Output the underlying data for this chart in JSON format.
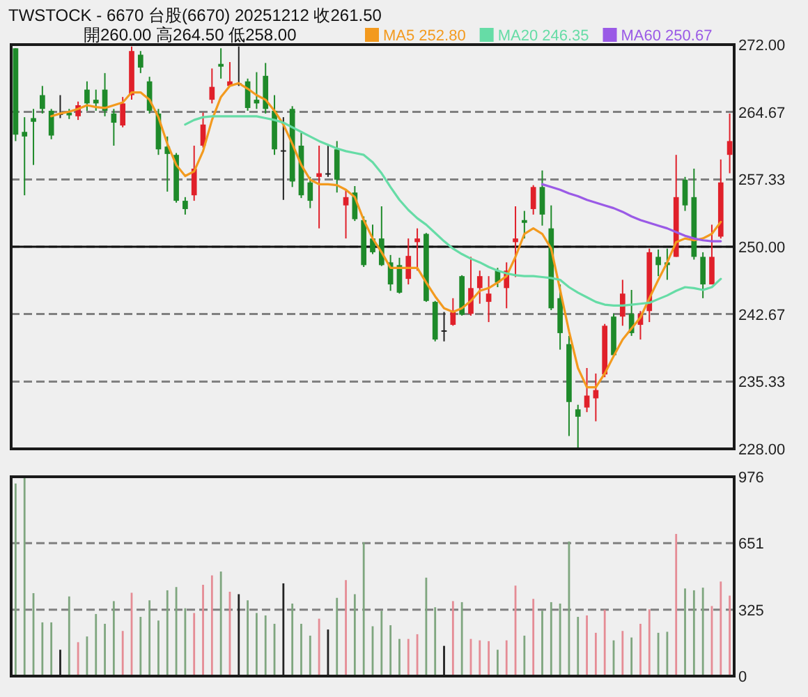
{
  "chart_data": [
    {
      "type": "candlestick",
      "title": "TWSTOCK - 6670  台股(6670) 20251212  收261.50",
      "subtitle": "開260.00   高264.50   低258.00",
      "categories": [
        null,
        null,
        null,
        null,
        null,
        null,
        null,
        null,
        null,
        null,
        null,
        null,
        null,
        null,
        null,
        null,
        null,
        null,
        null,
        null,
        null,
        null,
        null,
        null,
        null,
        null,
        null,
        null,
        null,
        null,
        null,
        null,
        null,
        null,
        null,
        null,
        null,
        null,
        null,
        null,
        null,
        null,
        null,
        null,
        null,
        null,
        null,
        null,
        null,
        null,
        null,
        null,
        null,
        null,
        null,
        null,
        null,
        null,
        null,
        null,
        null,
        null,
        null,
        null,
        null,
        null,
        null,
        null,
        null,
        null,
        null,
        null,
        null,
        null,
        null,
        null,
        null,
        null,
        null,
        null,
        null
      ],
      "ohlc": [
        [
          271.6,
          271.6,
          261.5,
          262.2
        ],
        [
          262.5,
          264.1,
          255.6,
          262.0
        ],
        [
          264.0,
          265.0,
          258.9,
          263.6
        ],
        [
          266.5,
          267.5,
          264.5,
          265.0
        ],
        [
          264.8,
          265.0,
          261.7,
          262.1
        ],
        [
          264.5,
          266.5,
          264.0,
          264.5
        ],
        [
          264.6,
          265.0,
          263.9,
          264.3
        ],
        [
          264.2,
          265.8,
          263.8,
          265.4
        ],
        [
          267.1,
          268.0,
          264.8,
          265.6
        ],
        [
          266.0,
          267.1,
          264.8,
          265.6
        ],
        [
          267.1,
          268.9,
          264.2,
          264.8
        ],
        [
          264.5,
          265.0,
          261.0,
          263.5
        ],
        [
          263.2,
          266.3,
          263.0,
          265.6
        ],
        [
          266.5,
          271.8,
          266.0,
          271.3
        ],
        [
          270.9,
          271.3,
          268.9,
          269.5
        ],
        [
          268.0,
          268.5,
          264.5,
          264.8
        ],
        [
          264.5,
          265.0,
          260.0,
          260.6
        ],
        [
          260.9,
          262.0,
          256.0,
          260.1
        ],
        [
          260.0,
          260.2,
          254.8,
          255.0
        ],
        [
          255.0,
          255.4,
          253.5,
          254.1
        ],
        [
          255.6,
          261.0,
          255.0,
          258.5
        ],
        [
          261.0,
          264.6,
          260.8,
          263.3
        ],
        [
          266.0,
          269.4,
          265.6,
          267.4
        ],
        [
          269.9,
          271.6,
          268.3,
          269.6
        ],
        [
          267.5,
          270.1,
          267.5,
          268.0
        ],
        [
          267.8,
          271.8,
          267.5,
          267.8
        ],
        [
          268.0,
          268.3,
          264.8,
          265.1
        ],
        [
          266.0,
          269.0,
          265.0,
          265.6
        ],
        [
          268.6,
          270.0,
          264.5,
          265.0
        ],
        [
          264.8,
          266.5,
          260.0,
          260.6
        ],
        [
          260.5,
          264.1,
          255.1,
          260.5
        ],
        [
          265.0,
          265.3,
          256.5,
          257.1
        ],
        [
          261.0,
          262.4,
          255.3,
          255.6
        ],
        [
          257.0,
          257.6,
          254.2,
          255.0
        ],
        [
          257.6,
          261.0,
          252.0,
          258.0
        ],
        [
          258.0,
          261.0,
          257.6,
          258.0
        ],
        [
          260.6,
          261.5,
          255.9,
          257.3
        ],
        [
          254.5,
          256.2,
          250.9,
          255.4
        ],
        [
          255.9,
          256.6,
          252.8,
          253.0
        ],
        [
          252.9,
          253.3,
          247.8,
          248.0
        ],
        [
          250.9,
          252.4,
          249.2,
          249.4
        ],
        [
          250.9,
          254.4,
          247.9,
          248.0
        ],
        [
          248.3,
          249.1,
          245.2,
          245.9
        ],
        [
          248.0,
          248.8,
          244.9,
          245.0
        ],
        [
          246.5,
          250.9,
          245.9,
          249.0
        ],
        [
          250.5,
          252.0,
          247.4,
          250.9
        ],
        [
          251.4,
          251.5,
          244.0,
          244.1
        ],
        [
          244.0,
          244.1,
          239.7,
          239.9
        ],
        [
          240.9,
          242.9,
          239.7,
          240.9
        ],
        [
          241.5,
          244.4,
          241.4,
          242.9
        ],
        [
          246.8,
          246.9,
          242.5,
          242.6
        ],
        [
          242.7,
          248.9,
          242.5,
          245.5
        ],
        [
          245.5,
          247.4,
          243.8,
          246.8
        ],
        [
          244.0,
          246.8,
          241.8,
          244.9
        ],
        [
          247.4,
          247.7,
          245.6,
          246.1
        ],
        [
          245.5,
          248.3,
          243.3,
          247.4
        ],
        [
          250.5,
          254.4,
          246.7,
          250.9
        ],
        [
          252.9,
          253.9,
          250.9,
          252.6
        ],
        [
          254.1,
          256.7,
          253.5,
          256.5
        ],
        [
          256.5,
          258.3,
          252.3,
          253.5
        ],
        [
          252.0,
          254.5,
          243.1,
          243.3
        ],
        [
          244.4,
          245.9,
          238.8,
          240.6
        ],
        [
          239.4,
          240.3,
          229.4,
          233.1
        ],
        [
          232.3,
          232.8,
          228.0,
          231.5
        ],
        [
          232.5,
          236.8,
          232.0,
          233.8
        ],
        [
          233.5,
          236.2,
          231.0,
          234.4
        ],
        [
          236.1,
          241.6,
          235.8,
          241.4
        ],
        [
          242.4,
          242.7,
          238.0,
          238.2
        ],
        [
          242.4,
          246.4,
          241.4,
          244.9
        ],
        [
          242.7,
          245.3,
          240.3,
          240.6
        ],
        [
          241.5,
          243.0,
          239.9,
          242.7
        ],
        [
          243.0,
          249.8,
          241.8,
          249.4
        ],
        [
          248.9,
          249.7,
          246.8,
          248.0
        ],
        [
          248.3,
          249.8,
          246.4,
          248.0
        ],
        [
          248.9,
          260.0,
          248.9,
          255.4
        ],
        [
          257.3,
          257.6,
          253.9,
          254.5
        ],
        [
          255.4,
          258.5,
          248.6,
          248.9
        ],
        [
          248.9,
          249.4,
          244.4,
          245.9
        ],
        [
          245.9,
          252.4,
          245.9,
          248.9
        ],
        [
          251.1,
          259.5,
          250.9,
          257.0
        ],
        [
          260.0,
          264.5,
          258.0,
          261.5
        ]
      ],
      "colors": [
        "#1e8a2a",
        "#1e8a2a",
        "#1e8a2a",
        "#1e8a2a",
        "#1e8a2a",
        "#222222",
        "#1e8a2a",
        "#e0202a",
        "#1e8a2a",
        "#1e8a2a",
        "#1e8a2a",
        "#1e8a2a",
        "#e0202a",
        "#e0202a",
        "#1e8a2a",
        "#1e8a2a",
        "#1e8a2a",
        "#1e8a2a",
        "#1e8a2a",
        "#1e8a2a",
        "#e0202a",
        "#e0202a",
        "#e0202a",
        "#1e8a2a",
        "#e0202a",
        "#222222",
        "#1e8a2a",
        "#1e8a2a",
        "#1e8a2a",
        "#1e8a2a",
        "#222222",
        "#1e8a2a",
        "#1e8a2a",
        "#1e8a2a",
        "#e0202a",
        "#222222",
        "#1e8a2a",
        "#e0202a",
        "#1e8a2a",
        "#1e8a2a",
        "#1e8a2a",
        "#1e8a2a",
        "#1e8a2a",
        "#1e8a2a",
        "#e0202a",
        "#e0202a",
        "#1e8a2a",
        "#1e8a2a",
        "#222222",
        "#e0202a",
        "#1e8a2a",
        "#e0202a",
        "#e0202a",
        "#e0202a",
        "#1e8a2a",
        "#e0202a",
        "#e0202a",
        "#1e8a2a",
        "#e0202a",
        "#1e8a2a",
        "#1e8a2a",
        "#1e8a2a",
        "#1e8a2a",
        "#1e8a2a",
        "#e0202a",
        "#e0202a",
        "#e0202a",
        "#1e8a2a",
        "#e0202a",
        "#1e8a2a",
        "#e0202a",
        "#e0202a",
        "#1e8a2a",
        "#1e8a2a",
        "#e0202a",
        "#1e8a2a",
        "#1e8a2a",
        "#1e8a2a",
        "#e0202a",
        "#e0202a",
        "#e0202a"
      ],
      "series": [
        {
          "name": "MA5 252.80",
          "type": "line",
          "color": "#f39a1e",
          "values": [
            null,
            null,
            null,
            null,
            264.2,
            264.5,
            264.7,
            265.0,
            265.4,
            265.2,
            265.1,
            265.4,
            265.7,
            266.8,
            266.8,
            266.0,
            264.1,
            261.2,
            258.9,
            257.7,
            258.2,
            260.4,
            263.8,
            266.3,
            267.5,
            267.8,
            267.2,
            266.5,
            266.0,
            264.8,
            263.3,
            261.2,
            258.9,
            257.3,
            256.8,
            256.8,
            256.7,
            256.2,
            255.4,
            252.9,
            250.9,
            249.4,
            247.7,
            247.7,
            247.7,
            247.7,
            246.1,
            244.6,
            243.3,
            242.9,
            243.3,
            244.1,
            245.2,
            245.5,
            246.1,
            246.8,
            248.9,
            251.4,
            252.0,
            251.4,
            249.8,
            245.3,
            240.8,
            236.8,
            234.7,
            234.7,
            236.2,
            238.1,
            239.9,
            241.1,
            242.3,
            244.4,
            246.4,
            248.3,
            250.5,
            250.9,
            250.7,
            250.9,
            251.4,
            252.7,
            null
          ]
        },
        {
          "name": "MA20 246.35",
          "type": "line",
          "color": "#66dca6",
          "values": [
            null,
            null,
            null,
            null,
            null,
            null,
            null,
            null,
            null,
            null,
            null,
            null,
            null,
            null,
            null,
            null,
            null,
            null,
            null,
            263.3,
            263.8,
            264.1,
            264.2,
            264.2,
            264.2,
            264.2,
            264.2,
            264.2,
            264.0,
            263.8,
            263.5,
            263.0,
            262.5,
            262.0,
            261.5,
            261.1,
            260.7,
            260.4,
            260.2,
            260.0,
            259.2,
            258.0,
            256.5,
            255.1,
            254.0,
            253.1,
            252.4,
            251.5,
            250.6,
            249.8,
            249.2,
            248.7,
            248.3,
            247.8,
            247.4,
            247.1,
            246.9,
            246.8,
            246.8,
            246.7,
            246.6,
            246.4,
            245.6,
            245.0,
            244.5,
            244.0,
            243.7,
            243.6,
            243.6,
            243.7,
            243.8,
            243.9,
            244.3,
            244.7,
            245.2,
            245.6,
            245.5,
            245.3,
            245.6,
            246.5,
            null
          ]
        },
        {
          "name": "MA60 250.67",
          "type": "line",
          "color": "#9a5ae6",
          "values": [
            null,
            null,
            null,
            null,
            null,
            null,
            null,
            null,
            null,
            null,
            null,
            null,
            null,
            null,
            null,
            null,
            null,
            null,
            null,
            null,
            null,
            null,
            null,
            null,
            null,
            null,
            null,
            null,
            null,
            null,
            null,
            null,
            null,
            null,
            null,
            null,
            null,
            null,
            null,
            null,
            null,
            null,
            null,
            null,
            null,
            null,
            null,
            null,
            null,
            null,
            null,
            null,
            null,
            null,
            null,
            null,
            null,
            null,
            null,
            256.8,
            256.5,
            256.2,
            255.8,
            255.5,
            255.1,
            254.8,
            254.5,
            254.2,
            253.8,
            253.3,
            252.9,
            252.6,
            252.3,
            252.0,
            251.6,
            251.2,
            250.9,
            250.7,
            250.6,
            250.6,
            null
          ]
        }
      ],
      "ylim": [
        228,
        272
      ],
      "yticks": [
        {
          "value": 228,
          "label": "228.00"
        },
        {
          "value": 235.33,
          "label": "235.33"
        },
        {
          "value": 242.67,
          "label": "242.67"
        },
        {
          "value": 250,
          "label": "250.00"
        },
        {
          "value": 257.33,
          "label": "257.33"
        },
        {
          "value": 264.67,
          "label": "264.67"
        },
        {
          "value": 272,
          "label": "272.00"
        }
      ],
      "grid": "y",
      "ref_lines": [
        {
          "axis": "y",
          "value": 250,
          "color": "#111111"
        }
      ],
      "legend": "top"
    },
    {
      "type": "bar",
      "categories": [
        null,
        null,
        null,
        null,
        null,
        null,
        null,
        null,
        null,
        null,
        null,
        null,
        null,
        null,
        null,
        null,
        null,
        null,
        null,
        null,
        null,
        null,
        null,
        null,
        null,
        null,
        null,
        null,
        null,
        null,
        null,
        null,
        null,
        null,
        null,
        null,
        null,
        null,
        null,
        null,
        null,
        null,
        null,
        null,
        null,
        null,
        null,
        null,
        null,
        null,
        null,
        null,
        null,
        null,
        null,
        null,
        null,
        null,
        null,
        null,
        null,
        null,
        null,
        null,
        null,
        null,
        null,
        null,
        null,
        null,
        null,
        null,
        null,
        null,
        null,
        null,
        null,
        null,
        null,
        null,
        null
      ],
      "values": [
        943,
        976,
        406,
        263,
        263,
        129,
        390,
        166,
        194,
        304,
        256,
        367,
        221,
        408,
        290,
        371,
        272,
        420,
        436,
        332,
        309,
        447,
        493,
        512,
        413,
        401,
        371,
        309,
        297,
        256,
        454,
        355,
        256,
        198,
        281,
        228,
        383,
        470,
        401,
        655,
        244,
        320,
        249,
        182,
        182,
        205,
        482,
        337,
        148,
        367,
        362,
        182,
        175,
        171,
        129,
        175,
        443,
        198,
        378,
        320,
        362,
        355,
        659,
        290,
        297,
        212,
        325,
        175,
        221,
        189,
        256,
        327,
        212,
        217,
        696,
        429,
        420,
        433,
        343,
        463,
        394
      ],
      "colors": [
        "#7fa67f",
        "#7fa67f",
        "#7fa67f",
        "#7fa67f",
        "#7fa67f",
        "#222222",
        "#7fa67f",
        "#e58c95",
        "#7fa67f",
        "#7fa67f",
        "#7fa67f",
        "#7fa67f",
        "#e58c95",
        "#e58c95",
        "#7fa67f",
        "#7fa67f",
        "#7fa67f",
        "#7fa67f",
        "#7fa67f",
        "#7fa67f",
        "#e58c95",
        "#e58c95",
        "#e58c95",
        "#7fa67f",
        "#e58c95",
        "#222222",
        "#7fa67f",
        "#7fa67f",
        "#7fa67f",
        "#7fa67f",
        "#222222",
        "#7fa67f",
        "#7fa67f",
        "#7fa67f",
        "#e58c95",
        "#222222",
        "#7fa67f",
        "#e58c95",
        "#7fa67f",
        "#7fa67f",
        "#7fa67f",
        "#7fa67f",
        "#7fa67f",
        "#7fa67f",
        "#e58c95",
        "#e58c95",
        "#7fa67f",
        "#7fa67f",
        "#222222",
        "#e58c95",
        "#7fa67f",
        "#e58c95",
        "#e58c95",
        "#e58c95",
        "#7fa67f",
        "#e58c95",
        "#e58c95",
        "#7fa67f",
        "#e58c95",
        "#7fa67f",
        "#7fa67f",
        "#7fa67f",
        "#7fa67f",
        "#7fa67f",
        "#e58c95",
        "#e58c95",
        "#e58c95",
        "#7fa67f",
        "#e58c95",
        "#7fa67f",
        "#e58c95",
        "#e58c95",
        "#7fa67f",
        "#7fa67f",
        "#e58c95",
        "#7fa67f",
        "#7fa67f",
        "#7fa67f",
        "#e58c95",
        "#e58c95",
        "#e58c95"
      ],
      "ylim": [
        0,
        976
      ],
      "yticks": [
        0,
        325,
        651,
        976
      ],
      "grid": "y"
    }
  ]
}
